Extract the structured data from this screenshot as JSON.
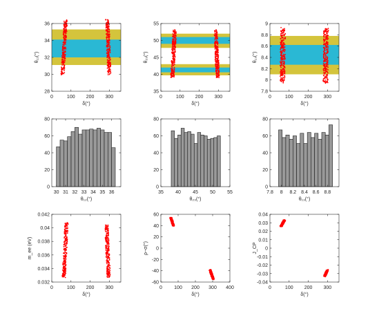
{
  "colors": {
    "scatter": "#ff0000",
    "band_outer": "#d4c43c",
    "band_inner": "#2ab8d4",
    "bar_fill": "#999999",
    "bar_edge": "#1a1a1a",
    "axis": "#262626"
  },
  "chart_data": [
    {
      "id": "p1",
      "type": "scatter",
      "xlabel": "δ(°)",
      "ylabel": "θ₁₂(°)",
      "xlim": [
        0,
        360
      ],
      "ylim": [
        28,
        36
      ],
      "xticks": [
        0,
        100,
        200,
        300
      ],
      "xticklabels": [
        "0",
        "100",
        "200",
        "300"
      ],
      "yticks": [
        28,
        30,
        32,
        34,
        36
      ],
      "yticklabels": [
        "28",
        "30",
        "32",
        "34",
        "36"
      ],
      "bands": [
        {
          "kind": "outer",
          "y": [
            31.1,
            35.3
          ]
        },
        {
          "kind": "inner",
          "y": [
            32.0,
            34.1
          ]
        }
      ],
      "clusters": [
        {
          "x0": 57,
          "y0": 30.0,
          "x1": 73,
          "y1": 36.4,
          "half_width": 5
        },
        {
          "x0": 290,
          "y0": 36.4,
          "x1": 300,
          "y1": 30.0,
          "half_width": 5
        }
      ]
    },
    {
      "id": "p2",
      "type": "scatter",
      "xlabel": "δ(°)",
      "ylabel": "θ₂₃(°)",
      "xlim": [
        0,
        360
      ],
      "ylim": [
        35,
        55
      ],
      "xticks": [
        0,
        100,
        200,
        300
      ],
      "xticklabels": [
        "0",
        "100",
        "200",
        "300"
      ],
      "yticks": [
        35,
        40,
        45,
        50,
        55
      ],
      "yticklabels": [
        "35",
        "40",
        "45",
        "50",
        "55"
      ],
      "bands": [
        {
          "kind": "outer",
          "y": [
            39.7,
            43.0
          ]
        },
        {
          "kind": "outer",
          "y": [
            47.8,
            52.0
          ]
        },
        {
          "kind": "inner",
          "y": [
            40.6,
            42.0
          ]
        },
        {
          "kind": "inner",
          "y": [
            49.0,
            51.0
          ]
        }
      ],
      "clusters": [
        {
          "x0": 60,
          "y0": 39.0,
          "x1": 72,
          "y1": 53.0,
          "half_width": 5
        },
        {
          "x0": 285,
          "y0": 53.0,
          "x1": 297,
          "y1": 39.0,
          "half_width": 5
        }
      ]
    },
    {
      "id": "p3",
      "type": "scatter",
      "xlabel": "δ(°)",
      "ylabel": "θ₁₃(°)",
      "xlim": [
        0,
        360
      ],
      "ylim": [
        7.8,
        9.0
      ],
      "xticks": [
        0,
        100,
        200,
        300
      ],
      "xticklabels": [
        "0",
        "100",
        "200",
        "300"
      ],
      "yticks": [
        7.8,
        8.0,
        8.2,
        8.4,
        8.6,
        8.8,
        9.0
      ],
      "yticklabels": [
        "7.8",
        "8",
        "8.2",
        "8.4",
        "8.6",
        "8.8",
        "9"
      ],
      "bands": [
        {
          "kind": "outer",
          "y": [
            8.1,
            8.78
          ]
        },
        {
          "kind": "inner",
          "y": [
            8.27,
            8.62
          ]
        }
      ],
      "clusters": [
        {
          "x0": 65,
          "y0": 7.95,
          "x1": 68,
          "y1": 8.92,
          "half_width": 7
        },
        {
          "x0": 290,
          "y0": 7.95,
          "x1": 293,
          "y1": 8.92,
          "half_width": 7
        }
      ]
    },
    {
      "id": "p4",
      "type": "bar",
      "xlabel": "θ₁₂(°)",
      "ylabel": "",
      "xlim": [
        29.5,
        37.0
      ],
      "ylim": [
        0,
        80
      ],
      "xticks": [
        30,
        31,
        32,
        33,
        34,
        35,
        36
      ],
      "xticklabels": [
        "30",
        "31",
        "32",
        "33",
        "34",
        "35",
        "36"
      ],
      "yticks": [
        0,
        20,
        40,
        60,
        80
      ],
      "yticklabels": [
        "0",
        "20",
        "40",
        "60",
        "80"
      ],
      "bin_start": 30.0,
      "bin_width": 0.4,
      "values": [
        47,
        55,
        54,
        59,
        65,
        70,
        62,
        67,
        67,
        68,
        67,
        69,
        67,
        64,
        64,
        46
      ]
    },
    {
      "id": "p5",
      "type": "bar",
      "xlabel": "θ₂₃(°)",
      "ylabel": "",
      "xlim": [
        35,
        55
      ],
      "ylim": [
        0,
        80
      ],
      "xticks": [
        35,
        40,
        45,
        50,
        55
      ],
      "xticklabels": [
        "35",
        "40",
        "45",
        "50",
        "55"
      ],
      "yticks": [
        0,
        20,
        40,
        60,
        80
      ],
      "yticklabels": [
        "0",
        "20",
        "40",
        "60",
        "80"
      ],
      "bin_start": 38.0,
      "bin_width": 0.95,
      "values": [
        66,
        57,
        61,
        69,
        64,
        65,
        62,
        51,
        64,
        61,
        60,
        56,
        57,
        58,
        60
      ]
    },
    {
      "id": "p6",
      "type": "bar",
      "xlabel": "θ₁₃(°)",
      "ylabel": "",
      "xlim": [
        7.8,
        9.0
      ],
      "ylim": [
        0,
        80
      ],
      "xticks": [
        7.8,
        8.0,
        8.2,
        8.4,
        8.6,
        8.8
      ],
      "xticklabels": [
        "7.8",
        "8",
        "8.2",
        "8.4",
        "8.6",
        "8.8"
      ],
      "yticks": [
        0,
        20,
        40,
        60,
        80
      ],
      "yticklabels": [
        "0",
        "20",
        "40",
        "60",
        "80"
      ],
      "bin_start": 7.95,
      "bin_width": 0.0625,
      "values": [
        67,
        58,
        61,
        56,
        60,
        51,
        63,
        51,
        64,
        58,
        63,
        56,
        64,
        61,
        73
      ]
    },
    {
      "id": "p7",
      "type": "scatter",
      "xlabel": "δ(°)",
      "ylabel": "m_ee (eV)",
      "xlim": [
        0,
        360
      ],
      "ylim": [
        0.032,
        0.042
      ],
      "xticks": [
        0,
        100,
        200,
        300
      ],
      "xticklabels": [
        "0",
        "100",
        "200",
        "300"
      ],
      "yticks": [
        0.032,
        0.034,
        0.036,
        0.038,
        0.04,
        0.042
      ],
      "yticklabels": [
        "0.032",
        "0.034",
        "0.036",
        "0.038",
        "0.04",
        "0.042"
      ],
      "bands": [],
      "clusters": [
        {
          "x0": 63,
          "y0": 0.0327,
          "x1": 77,
          "y1": 0.0408,
          "half_width": 5
        },
        {
          "x0": 285,
          "y0": 0.0404,
          "x1": 297,
          "y1": 0.0327,
          "half_width": 5
        }
      ]
    },
    {
      "id": "p8",
      "type": "scatter",
      "xlabel": "δ(°)",
      "ylabel": "ρ−σ(°)",
      "xlim": [
        0,
        400
      ],
      "ylim": [
        -60,
        60
      ],
      "xticks": [
        0,
        100,
        200,
        300,
        400
      ],
      "xticklabels": [
        "0",
        "100",
        "200",
        "300",
        "400"
      ],
      "yticks": [
        -60,
        -40,
        -20,
        0,
        20,
        40,
        60
      ],
      "yticklabels": [
        "-60",
        "-40",
        "-20",
        "0",
        "20",
        "40",
        "60"
      ],
      "bands": [],
      "clusters": [
        {
          "x0": 58,
          "y0": 54,
          "x1": 73,
          "y1": 40,
          "half_width": 3
        },
        {
          "x0": 285,
          "y0": -38,
          "x1": 303,
          "y1": -55,
          "half_width": 3
        }
      ]
    },
    {
      "id": "p9",
      "type": "scatter",
      "xlabel": "δ(°)",
      "ylabel": "J_CP",
      "xlim": [
        0,
        360
      ],
      "ylim": [
        -0.04,
        0.04
      ],
      "xticks": [
        0,
        100,
        200,
        300
      ],
      "xticklabels": [
        "0",
        "100",
        "200",
        "300"
      ],
      "yticks": [
        -0.04,
        -0.03,
        -0.02,
        -0.01,
        0,
        0.01,
        0.02,
        0.03,
        0.04
      ],
      "yticklabels": [
        "-0.04",
        "-0.03",
        "-0.02",
        "-0.01",
        "0",
        "0.01",
        "0.02",
        "0.03",
        "0.04"
      ],
      "bands": [],
      "clusters": [
        {
          "x0": 58,
          "y0": 0.026,
          "x1": 76,
          "y1": 0.033,
          "half_width": 3
        },
        {
          "x0": 285,
          "y0": -0.033,
          "x1": 300,
          "y1": -0.026,
          "half_width": 3
        }
      ]
    }
  ]
}
